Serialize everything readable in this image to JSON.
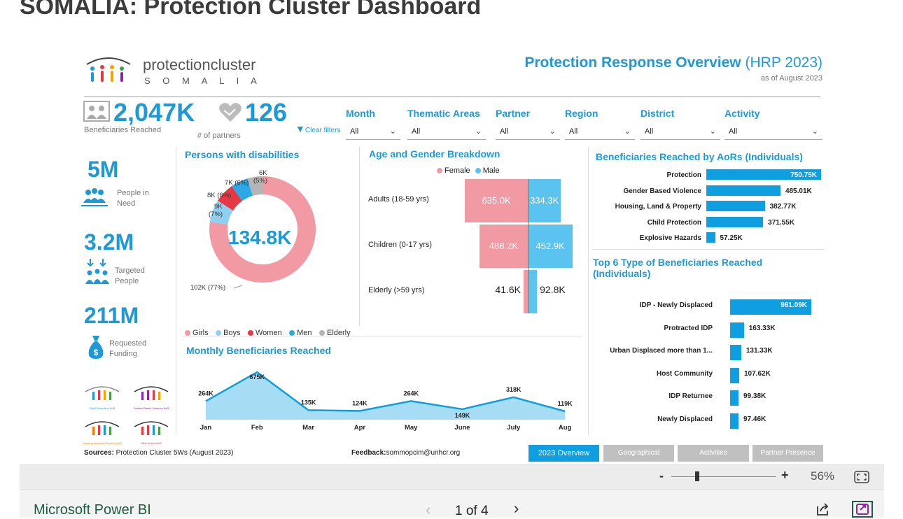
{
  "page": {
    "title": "SOMALIA: Protection Cluster Dashboard"
  },
  "header": {
    "logo_name": "protectioncluster",
    "logo_country": "S O M A L I A",
    "overview_title": "Protection Response Overview",
    "overview_suffix": "(HRP 2023)",
    "as_of": "as of August 2023"
  },
  "kpis": {
    "beneficiaries_value": "2,047K",
    "beneficiaries_label": "Beneficiaries Reached",
    "partners_value": "126",
    "partners_label": "# of partners",
    "clear_filters": "Clear filters"
  },
  "filters": [
    {
      "label": "Month",
      "value": "All"
    },
    {
      "label": "Thematic Areas",
      "value": "All"
    },
    {
      "label": "Partner",
      "value": "All"
    },
    {
      "label": "Region",
      "value": "All"
    },
    {
      "label": "District",
      "value": "All"
    },
    {
      "label": "Activity",
      "value": "All"
    }
  ],
  "side_kpis": {
    "pin_value": "5M",
    "pin_label1": "People in",
    "pin_label2": "Need",
    "targeted_value": "3.2M",
    "targeted_label1": "Targeted",
    "targeted_label2": "People",
    "funding_value": "211M",
    "funding_label1": "Requested",
    "funding_label2": "Funding"
  },
  "aor_logos": [
    "Child Protection AoR",
    "Gender Based Violence AoR",
    "Housing land and Property AoR",
    "Mine Action AoR"
  ],
  "disabilities": {
    "title": "Persons with disabilities",
    "center": "134.8K",
    "slices": [
      {
        "name": "Girls",
        "value": 102,
        "label": "102K (77%)",
        "color": "#f29aa3"
      },
      {
        "name": "Boys",
        "value": 9,
        "label1": "9K",
        "label2": "(7%)",
        "color": "#8fd0f0"
      },
      {
        "name": "Women",
        "value": 8,
        "label": "8K (6%)",
        "color": "#e63946"
      },
      {
        "name": "Men",
        "value": 7,
        "label": "7K (6%)",
        "color": "#2ea8e5"
      },
      {
        "name": "Elderly",
        "value": 6,
        "label1": "6K",
        "label2": "(5%)",
        "color": "#b5b5b5"
      }
    ],
    "legend": [
      "Girls",
      "Boys",
      "Women",
      "Men",
      "Elderly"
    ]
  },
  "age_gender": {
    "title": "Age and Gender Breakdown",
    "legend_female": "Female",
    "legend_male": "Male",
    "rows": [
      {
        "label": "Adults (18-59 yrs)",
        "female": 635.0,
        "male": 334.3,
        "female_label": "635.0K",
        "male_label": "334.3K"
      },
      {
        "label": "Children (0-17 yrs)",
        "female": 488.2,
        "male": 452.9,
        "female_label": "488.2K",
        "male_label": "452.9K"
      },
      {
        "label": "Elderly (>59 yrs)",
        "female": 41.6,
        "male": 92.8,
        "female_label": "41.6K",
        "male_label": "92.8K"
      }
    ]
  },
  "aors": {
    "title": "Beneficiaries Reached by AoRs (Individuals)",
    "rows": [
      {
        "label": "Protection",
        "value": 750.75,
        "display": "750.75K"
      },
      {
        "label": "Gender Based Violence",
        "value": 485.01,
        "display": "485.01K"
      },
      {
        "label": "Housing, Land & Property",
        "value": 382.77,
        "display": "382.77K"
      },
      {
        "label": "Child Protection",
        "value": 371.55,
        "display": "371.55K"
      },
      {
        "label": "Explosive Hazards",
        "value": 57.25,
        "display": "57.25K"
      }
    ]
  },
  "top6": {
    "title1": "Top 6 Type of Beneficiaries Reached",
    "title2": "(Individuals)",
    "rows": [
      {
        "label": "IDP - Newly Displaced",
        "value": 961.09,
        "display": "961.09K"
      },
      {
        "label": "Protracted IDP",
        "value": 163.33,
        "display": "163.33K"
      },
      {
        "label": "Urban Displaced more than 1...",
        "value": 131.33,
        "display": "131.33K"
      },
      {
        "label": "Host Community",
        "value": 107.62,
        "display": "107.62K"
      },
      {
        "label": "IDP Returnee",
        "value": 99.38,
        "display": "99.38K"
      },
      {
        "label": "Newly Displaced",
        "value": 97.46,
        "display": "97.46K"
      }
    ]
  },
  "chart_data": {
    "type": "area",
    "title": "Monthly Beneficiaries Reached",
    "categories": [
      "Jan",
      "Feb",
      "Mar",
      "Apr",
      "May",
      "June",
      "July",
      "Aug"
    ],
    "values": [
      264,
      675,
      135,
      124,
      264,
      149,
      318,
      119
    ],
    "labels": [
      "264K",
      "675K",
      "135K",
      "124K",
      "264K",
      "149K",
      "318K",
      "119K"
    ],
    "xlabel": "",
    "ylabel": "",
    "ylim": [
      0,
      700
    ]
  },
  "footer_bar": {
    "sources_label": "Sources:",
    "sources_text": "Protection Cluster 5Ws (August 2023)",
    "feedback_label": "Feedback:",
    "feedback_text": "sommopcim@unhcr.org",
    "tabs": [
      "2023 Overview",
      "Geographical Distribution",
      "Activities",
      "Partner Presence"
    ]
  },
  "viewer": {
    "zoom_minus": "-",
    "zoom_plus": "+",
    "zoom": "56%",
    "brand": "Microsoft Power BI",
    "page_indicator": "1 of 4"
  }
}
